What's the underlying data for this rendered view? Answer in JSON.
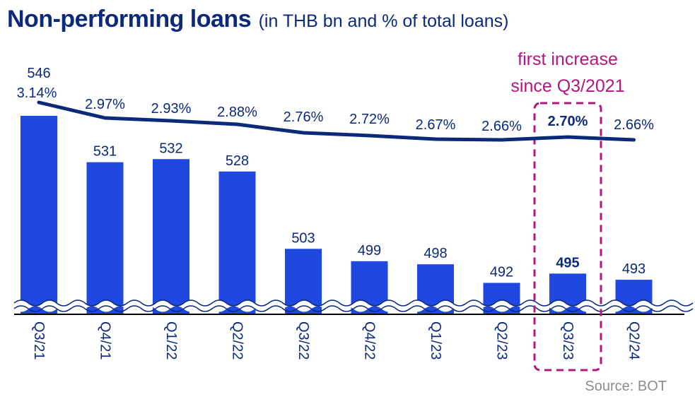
{
  "title": "Non-performing loans",
  "subtitle": "(in THB bn and % of total loans)",
  "source": "Source: BOT",
  "annotation": {
    "line1": "first increase",
    "line2": "since Q3/2021",
    "highlight_category": "Q3/23"
  },
  "colors": {
    "bar": "#1f48e0",
    "line": "#0b2a7a",
    "annotation": "#b0187f",
    "text": "#0b2a7a"
  },
  "chart_data": {
    "type": "bar",
    "categories": [
      "Q3/21",
      "Q4/21",
      "Q1/22",
      "Q2/22",
      "Q3/22",
      "Q4/22",
      "Q1/23",
      "Q2/23",
      "Q3/23",
      "Q2/24"
    ],
    "series": [
      {
        "type": "bar",
        "values": [
          546,
          531,
          532,
          528,
          503,
          499,
          498,
          492,
          495,
          493
        ],
        "labels": [
          "546",
          "531",
          "532",
          "528",
          "503",
          "499",
          "498",
          "492",
          "495",
          "493"
        ]
      },
      {
        "type": "line",
        "values": [
          3.14,
          2.97,
          2.93,
          2.88,
          2.76,
          2.72,
          2.67,
          2.66,
          2.7,
          2.66
        ],
        "labels": [
          "3.14%",
          "2.97%",
          "2.93%",
          "2.88%",
          "2.76%",
          "2.72%",
          "2.67%",
          "2.66%",
          "2.70%",
          "2.66%"
        ]
      }
    ],
    "y_axis_break": true,
    "bold_category": "Q3/23"
  }
}
